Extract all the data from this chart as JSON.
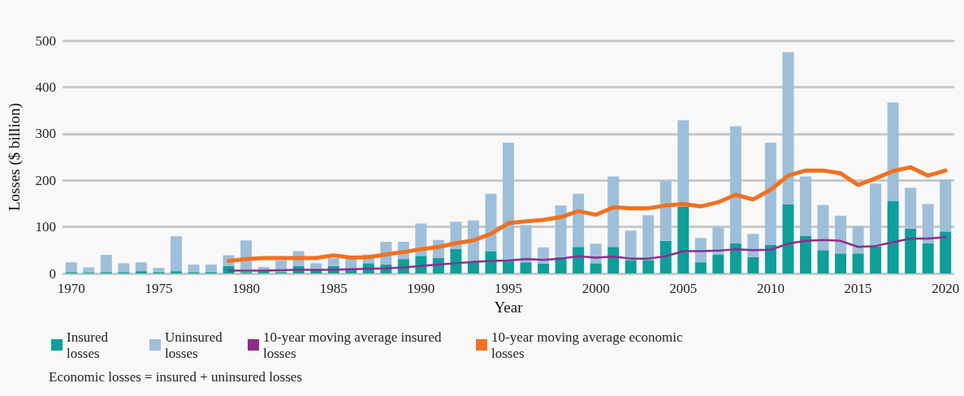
{
  "chart_data": {
    "type": "bar",
    "stacked": true,
    "xlabel": "Year",
    "ylabel": "Losses ($ billion)",
    "categories": [
      "1970",
      null,
      null,
      null,
      null,
      "1975",
      null,
      null,
      null,
      null,
      "1980",
      null,
      null,
      null,
      null,
      "1985",
      null,
      null,
      null,
      null,
      "1990",
      null,
      null,
      null,
      null,
      "1995",
      null,
      null,
      null,
      null,
      "2000",
      null,
      null,
      null,
      null,
      "2005",
      null,
      null,
      null,
      null,
      "2010",
      null,
      null,
      null,
      null,
      "2015",
      null,
      null,
      null,
      null,
      "2020"
    ],
    "series": [
      {
        "name": "Insured losses",
        "color": "#0f9e9a",
        "values": [
          3,
          2,
          3,
          3,
          5,
          3,
          5,
          3,
          3,
          16,
          3,
          5,
          3,
          16,
          7,
          16,
          7,
          22,
          19,
          31,
          38,
          33,
          53,
          25,
          48,
          26,
          24,
          21,
          35,
          57,
          22,
          57,
          29,
          29,
          70,
          143,
          24,
          40,
          65,
          35,
          61,
          149,
          81,
          50,
          43,
          43,
          58,
          156,
          96,
          65,
          90
        ]
      },
      {
        "name": "Uninsured losses",
        "color": "#9ebfda",
        "values": [
          21,
          11,
          37,
          19,
          19,
          9,
          75,
          16,
          16,
          23,
          68,
          9,
          25,
          32,
          15,
          17,
          24,
          19,
          49,
          37,
          69,
          39,
          58,
          89,
          123,
          255,
          80,
          35,
          111,
          114,
          42,
          151,
          63,
          96,
          129,
          186,
          52,
          59,
          251,
          50,
          220,
          326,
          127,
          97,
          81,
          58,
          135,
          211,
          88,
          84,
          112
        ]
      },
      {
        "name": "10-year moving average insured losses",
        "type": "line",
        "color": "#8e2c8e",
        "values": [
          null,
          null,
          null,
          null,
          null,
          null,
          null,
          null,
          null,
          6,
          6,
          6,
          7,
          8,
          8,
          8,
          9,
          10,
          11,
          13,
          16,
          19,
          22,
          25,
          27,
          28,
          31,
          29,
          32,
          37,
          34,
          36,
          32,
          32,
          37,
          48,
          48,
          49,
          52,
          50,
          51,
          64,
          70,
          72,
          70,
          57,
          59,
          67,
          75,
          75,
          78
        ]
      },
      {
        "name": "10-year moving average economic losses",
        "type": "line",
        "color": "#f07122",
        "values": [
          null,
          null,
          null,
          null,
          null,
          null,
          null,
          null,
          null,
          27,
          31,
          33,
          33,
          33,
          33,
          39,
          34,
          35,
          41,
          46,
          52,
          57,
          65,
          71,
          85,
          108,
          112,
          115,
          121,
          134,
          126,
          142,
          140,
          140,
          146,
          149,
          144,
          153,
          169,
          159,
          180,
          210,
          221,
          221,
          215,
          190,
          204,
          220,
          228,
          210,
          221
        ]
      }
    ],
    "ylim": [
      0,
      500
    ],
    "yticks": [
      0,
      100,
      200,
      300,
      400,
      500
    ],
    "grid": "y",
    "legend": "bottom left",
    "marker": "none",
    "line_style": "solid",
    "annotations": [
      "Economic losses = insured + uninsured losses"
    ]
  }
}
